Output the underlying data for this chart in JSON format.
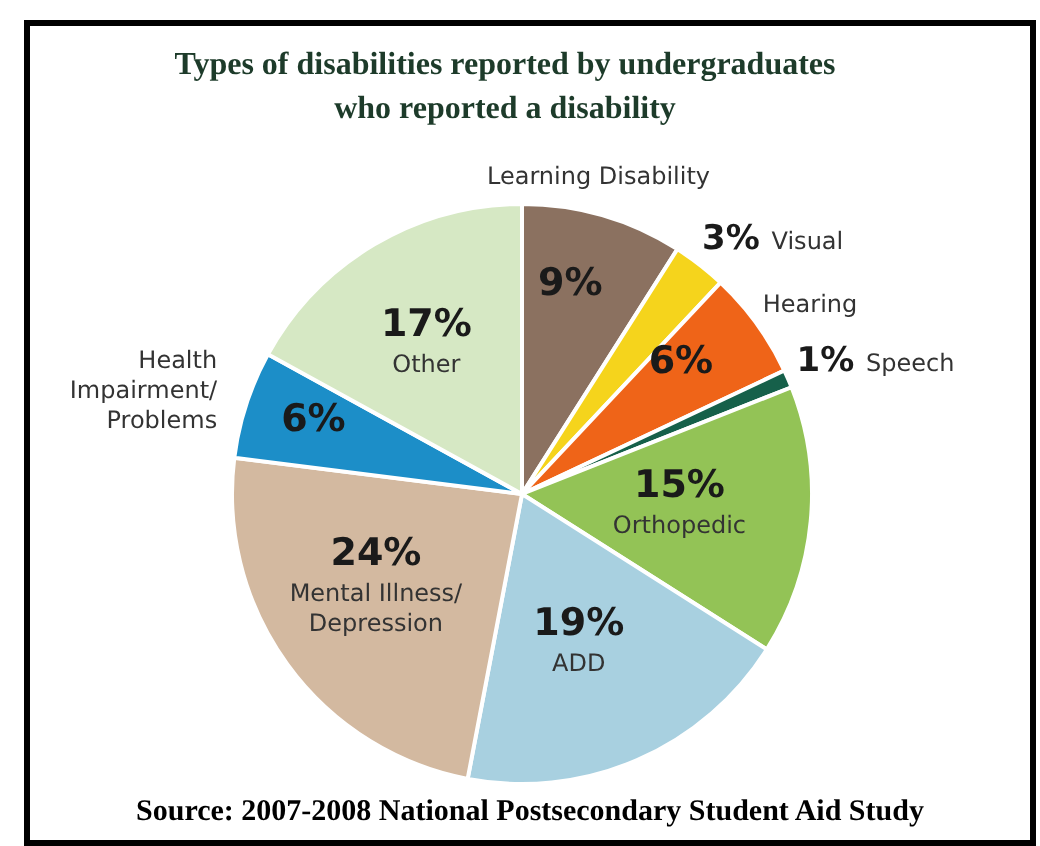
{
  "chart_data": {
    "type": "pie",
    "title": "Types of disabilities reported by undergraduates who reported a disability",
    "categories": [
      "Learning Disability",
      "Visual",
      "Hearing",
      "Speech",
      "Orthopedic",
      "ADD",
      "Mental Illness/Depression",
      "Health Impairment/Problems",
      "Other"
    ],
    "values": [
      9,
      3,
      6,
      1,
      15,
      19,
      24,
      6,
      17
    ],
    "value_labels": [
      "9%",
      "3%",
      "6%",
      "1%",
      "15%",
      "19%",
      "24%",
      "6%",
      "17%"
    ],
    "colors": [
      "#8b7160",
      "#f5d41c",
      "#ef6418",
      "#16604a",
      "#93c356",
      "#a8d0e0",
      "#d3b9a0",
      "#1c8ec8",
      "#d6e8c4"
    ],
    "annotations": [
      "Source: 2007-2008 National Postsecondary Student Aid Study"
    ]
  }
}
